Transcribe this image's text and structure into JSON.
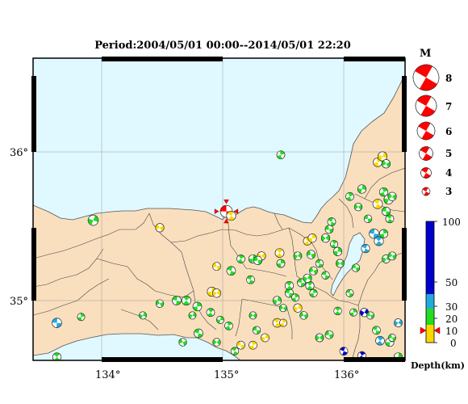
{
  "title": "Period:2004/05/01 00:00--2014/05/01 22:20",
  "x_ticks": [
    "134°",
    "135°",
    "136°"
  ],
  "y_ticks": [
    "36°",
    "35°"
  ],
  "magnitude_legend": {
    "title": "M",
    "labels": [
      "8",
      "7",
      "6",
      "5",
      "4",
      "3"
    ]
  },
  "depth_legend": {
    "unit": "Depth(km)",
    "tick_labels": [
      "100",
      "50",
      "30",
      "20",
      "10",
      "0"
    ],
    "colors": [
      "#ffd700",
      "#22dd22",
      "#22aadd",
      "#0000cc"
    ]
  },
  "colors": {
    "sea": "#e0f8ff",
    "land": "#f9dfbe",
    "boundary": "#444444",
    "highlight_event": "#ff0000"
  },
  "events": [
    {
      "lon": 135.03,
      "lat": 35.6,
      "m": 4.3,
      "c": "red"
    },
    {
      "lon": 135.07,
      "lat": 35.57,
      "m": 3.5,
      "c": "yellow"
    },
    {
      "lon": 135.48,
      "lat": 35.98,
      "m": 3.2,
      "c": "green"
    },
    {
      "lon": 133.93,
      "lat": 35.54,
      "m": 3.8,
      "c": "green"
    },
    {
      "lon": 134.48,
      "lat": 35.49,
      "m": 3.3,
      "c": "yellow"
    },
    {
      "lon": 133.63,
      "lat": 34.85,
      "m": 3.6,
      "c": "cyan"
    },
    {
      "lon": 133.63,
      "lat": 34.62,
      "m": 3.3,
      "c": "green"
    },
    {
      "lon": 133.83,
      "lat": 34.89,
      "m": 3.0,
      "c": "green"
    },
    {
      "lon": 134.34,
      "lat": 34.9,
      "m": 3.0,
      "c": "green"
    },
    {
      "lon": 134.48,
      "lat": 34.98,
      "m": 3.1,
      "c": "green"
    },
    {
      "lon": 134.62,
      "lat": 35.0,
      "m": 3.4,
      "c": "green"
    },
    {
      "lon": 134.7,
      "lat": 35.0,
      "m": 3.5,
      "c": "green"
    },
    {
      "lon": 134.79,
      "lat": 34.96,
      "m": 3.4,
      "c": "green"
    },
    {
      "lon": 134.75,
      "lat": 34.9,
      "m": 3.0,
      "c": "green"
    },
    {
      "lon": 134.67,
      "lat": 34.72,
      "m": 3.1,
      "c": "green"
    },
    {
      "lon": 134.8,
      "lat": 34.78,
      "m": 3.4,
      "c": "green"
    },
    {
      "lon": 134.9,
      "lat": 34.92,
      "m": 3.2,
      "c": "green"
    },
    {
      "lon": 134.91,
      "lat": 35.06,
      "m": 3.5,
      "c": "yellow"
    },
    {
      "lon": 134.95,
      "lat": 35.05,
      "m": 3.3,
      "c": "yellow"
    },
    {
      "lon": 134.95,
      "lat": 35.23,
      "m": 3.2,
      "c": "yellow"
    },
    {
      "lon": 135.07,
      "lat": 35.2,
      "m": 3.4,
      "c": "green"
    },
    {
      "lon": 135.15,
      "lat": 35.28,
      "m": 3.2,
      "c": "green"
    },
    {
      "lon": 135.25,
      "lat": 35.28,
      "m": 3.3,
      "c": "green"
    },
    {
      "lon": 135.32,
      "lat": 35.3,
      "m": 3.3,
      "c": "yellow"
    },
    {
      "lon": 135.29,
      "lat": 35.27,
      "m": 3.3,
      "c": "green"
    },
    {
      "lon": 135.23,
      "lat": 35.14,
      "m": 3.2,
      "c": "green"
    },
    {
      "lon": 135.05,
      "lat": 34.83,
      "m": 3.2,
      "c": "green"
    },
    {
      "lon": 134.98,
      "lat": 34.87,
      "m": 3.0,
      "c": "green"
    },
    {
      "lon": 134.95,
      "lat": 34.72,
      "m": 3.1,
      "c": "green"
    },
    {
      "lon": 135.15,
      "lat": 34.7,
      "m": 3.2,
      "c": "yellow"
    },
    {
      "lon": 135.1,
      "lat": 34.66,
      "m": 3.1,
      "c": "green"
    },
    {
      "lon": 135.25,
      "lat": 34.7,
      "m": 3.2,
      "c": "yellow"
    },
    {
      "lon": 135.35,
      "lat": 34.75,
      "m": 3.2,
      "c": "yellow"
    },
    {
      "lon": 135.25,
      "lat": 34.9,
      "m": 3.0,
      "c": "green"
    },
    {
      "lon": 135.28,
      "lat": 34.8,
      "m": 3.1,
      "c": "green"
    },
    {
      "lon": 135.45,
      "lat": 34.85,
      "m": 3.4,
      "c": "yellow"
    },
    {
      "lon": 135.5,
      "lat": 34.85,
      "m": 3.0,
      "c": "yellow"
    },
    {
      "lon": 135.45,
      "lat": 35.0,
      "m": 3.3,
      "c": "green"
    },
    {
      "lon": 135.5,
      "lat": 34.95,
      "m": 3.0,
      "c": "green"
    },
    {
      "lon": 135.55,
      "lat": 35.05,
      "m": 3.3,
      "c": "green"
    },
    {
      "lon": 135.55,
      "lat": 35.1,
      "m": 3.3,
      "c": "green"
    },
    {
      "lon": 135.6,
      "lat": 35.02,
      "m": 3.0,
      "c": "green"
    },
    {
      "lon": 135.62,
      "lat": 34.95,
      "m": 3.3,
      "c": "yellow"
    },
    {
      "lon": 135.67,
      "lat": 34.9,
      "m": 3.1,
      "c": "green"
    },
    {
      "lon": 135.65,
      "lat": 35.12,
      "m": 3.2,
      "c": "green"
    },
    {
      "lon": 135.72,
      "lat": 35.1,
      "m": 3.3,
      "c": "green"
    },
    {
      "lon": 135.75,
      "lat": 35.05,
      "m": 3.1,
      "c": "green"
    },
    {
      "lon": 135.7,
      "lat": 35.15,
      "m": 3.3,
      "c": "green"
    },
    {
      "lon": 135.75,
      "lat": 35.2,
      "m": 3.2,
      "c": "green"
    },
    {
      "lon": 135.85,
      "lat": 35.17,
      "m": 3.1,
      "c": "green"
    },
    {
      "lon": 135.47,
      "lat": 35.32,
      "m": 3.4,
      "c": "yellow"
    },
    {
      "lon": 135.48,
      "lat": 35.25,
      "m": 3.2,
      "c": "green"
    },
    {
      "lon": 135.62,
      "lat": 35.3,
      "m": 3.2,
      "c": "green"
    },
    {
      "lon": 135.73,
      "lat": 35.31,
      "m": 3.3,
      "c": "green"
    },
    {
      "lon": 135.8,
      "lat": 35.25,
      "m": 3.1,
      "c": "green"
    },
    {
      "lon": 135.7,
      "lat": 35.4,
      "m": 3.2,
      "c": "yellow"
    },
    {
      "lon": 135.74,
      "lat": 35.42,
      "m": 3.3,
      "c": "yellow"
    },
    {
      "lon": 135.85,
      "lat": 35.42,
      "m": 3.3,
      "c": "green"
    },
    {
      "lon": 135.88,
      "lat": 35.48,
      "m": 3.2,
      "c": "green"
    },
    {
      "lon": 135.9,
      "lat": 35.53,
      "m": 3.2,
      "c": "green"
    },
    {
      "lon": 135.92,
      "lat": 35.38,
      "m": 3.0,
      "c": "green"
    },
    {
      "lon": 135.95,
      "lat": 35.33,
      "m": 3.3,
      "c": "green"
    },
    {
      "lon": 135.97,
      "lat": 35.25,
      "m": 3.2,
      "c": "green"
    },
    {
      "lon": 136.1,
      "lat": 35.22,
      "m": 3.1,
      "c": "green"
    },
    {
      "lon": 136.18,
      "lat": 35.35,
      "m": 3.3,
      "c": "cyan"
    },
    {
      "lon": 136.05,
      "lat": 35.7,
      "m": 3.2,
      "c": "green"
    },
    {
      "lon": 136.15,
      "lat": 35.75,
      "m": 3.3,
      "c": "green"
    },
    {
      "lon": 136.12,
      "lat": 35.63,
      "m": 3.1,
      "c": "green"
    },
    {
      "lon": 136.2,
      "lat": 35.55,
      "m": 3.1,
      "c": "green"
    },
    {
      "lon": 136.28,
      "lat": 35.65,
      "m": 3.6,
      "c": "yellow"
    },
    {
      "lon": 136.33,
      "lat": 35.73,
      "m": 3.3,
      "c": "green"
    },
    {
      "lon": 136.37,
      "lat": 35.68,
      "m": 3.5,
      "c": "green"
    },
    {
      "lon": 136.4,
      "lat": 35.7,
      "m": 3.3,
      "c": "green"
    },
    {
      "lon": 136.35,
      "lat": 35.6,
      "m": 3.3,
      "c": "green"
    },
    {
      "lon": 136.38,
      "lat": 35.55,
      "m": 3.2,
      "c": "green"
    },
    {
      "lon": 136.28,
      "lat": 35.93,
      "m": 3.4,
      "c": "yellow"
    },
    {
      "lon": 136.32,
      "lat": 35.97,
      "m": 3.5,
      "c": "yellow"
    },
    {
      "lon": 136.35,
      "lat": 35.92,
      "m": 3.3,
      "c": "green"
    },
    {
      "lon": 136.25,
      "lat": 35.45,
      "m": 3.6,
      "c": "cyan"
    },
    {
      "lon": 136.29,
      "lat": 35.4,
      "m": 3.5,
      "c": "cyan"
    },
    {
      "lon": 136.33,
      "lat": 35.45,
      "m": 3.3,
      "c": "green"
    },
    {
      "lon": 136.35,
      "lat": 35.28,
      "m": 3.2,
      "c": "green"
    },
    {
      "lon": 136.4,
      "lat": 35.3,
      "m": 3.2,
      "c": "green"
    },
    {
      "lon": 136.05,
      "lat": 35.05,
      "m": 3.0,
      "c": "green"
    },
    {
      "lon": 135.95,
      "lat": 34.93,
      "m": 3.1,
      "c": "green"
    },
    {
      "lon": 136.08,
      "lat": 34.92,
      "m": 3.0,
      "c": "green"
    },
    {
      "lon": 136.17,
      "lat": 34.92,
      "m": 3.3,
      "c": "blue"
    },
    {
      "lon": 136.22,
      "lat": 34.9,
      "m": 3.0,
      "c": "green"
    },
    {
      "lon": 136.27,
      "lat": 34.8,
      "m": 3.2,
      "c": "green"
    },
    {
      "lon": 136.3,
      "lat": 34.73,
      "m": 3.4,
      "c": "cyan"
    },
    {
      "lon": 136.38,
      "lat": 34.72,
      "m": 3.3,
      "c": "green"
    },
    {
      "lon": 136.45,
      "lat": 34.85,
      "m": 3.2,
      "c": "cyan"
    },
    {
      "lon": 136.4,
      "lat": 34.75,
      "m": 3.0,
      "c": "green"
    },
    {
      "lon": 136.0,
      "lat": 34.66,
      "m": 3.2,
      "c": "blue"
    },
    {
      "lon": 136.15,
      "lat": 34.63,
      "m": 3.2,
      "c": "blue"
    },
    {
      "lon": 136.45,
      "lat": 34.62,
      "m": 3.3,
      "c": "green"
    },
    {
      "lon": 135.8,
      "lat": 34.75,
      "m": 3.2,
      "c": "green"
    },
    {
      "lon": 135.88,
      "lat": 34.77,
      "m": 3.2,
      "c": "green"
    }
  ]
}
